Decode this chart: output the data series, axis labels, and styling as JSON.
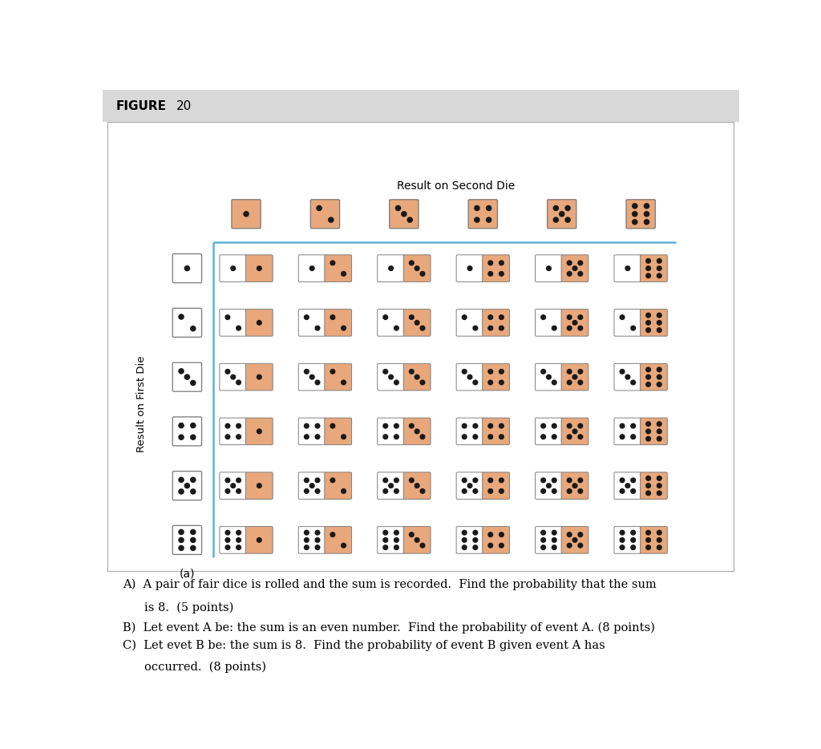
{
  "title_bold": "FIGURE",
  "title_num": "20",
  "second_die_label": "Result on Second Die",
  "first_die_label": "Result on First Die",
  "caption": "(a)",
  "question_a": "A)  A pair of fair dice is rolled and the sum is recorded.  Find the probability that the sum\n      is 8.  (5 points)",
  "question_b": "B)  Let event A be: the sum is an even number.  Find the probability of event A. (8 points)",
  "question_c": "C)  Let evet B be: the sum is 8.  Find the probability of event B given event A has\n      occurred.  (8 points)",
  "white_bg": "#ffffff",
  "orange_color": "#e8a87c",
  "dot_color": "#1a1a1a",
  "header_bg": "#d8d8d8",
  "blue_line_color": "#5ab4d4",
  "border_color": "#999999",
  "fig_w": 10.24,
  "fig_h": 9.34
}
